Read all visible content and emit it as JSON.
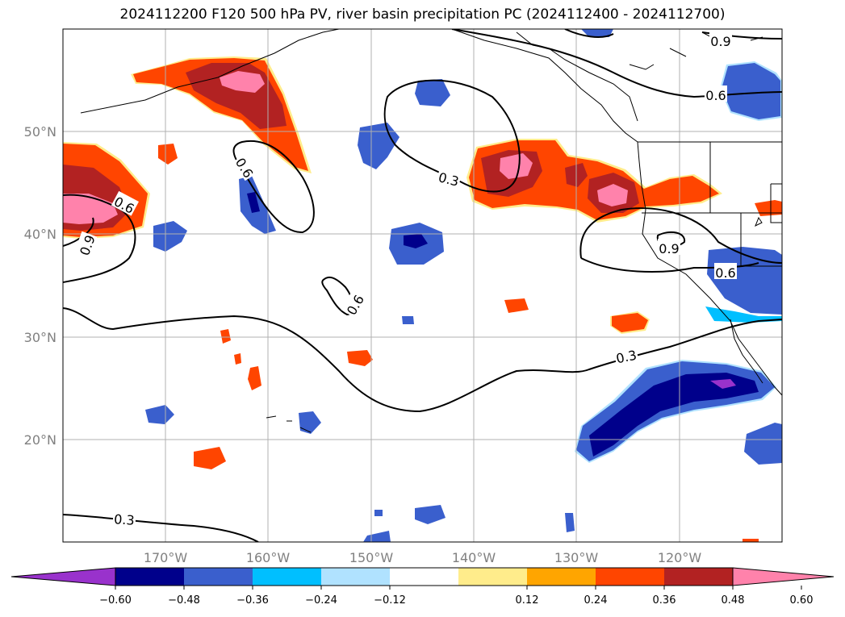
{
  "title": "2024112200 F120 500 hPa PV, river basin precipitation PC (2024112400 - 2024112700)",
  "map": {
    "lon_labels": [
      "170°W",
      "160°W",
      "150°W",
      "140°W",
      "130°W",
      "120°W"
    ],
    "lat_labels": [
      "50°N",
      "40°N",
      "30°N",
      "20°N"
    ],
    "contour_labels": [
      "0.9",
      "0.6",
      "0.6",
      "0.6",
      "0.9",
      "0.3",
      "0.6",
      "0.9",
      "0.6",
      "0.3",
      "0.3"
    ]
  },
  "colorbar": {
    "ticks": [
      "−0.60",
      "−0.48",
      "−0.36",
      "−0.24",
      "−0.12",
      "0.12",
      "0.24",
      "0.36",
      "0.48",
      "0.60"
    ],
    "colors": [
      "#9932cc",
      "#00008b",
      "#3a5fcd",
      "#00bfff",
      "#b0e2ff",
      "#ffffff",
      "#ffec8b",
      "#ffa500",
      "#ff4500",
      "#b22222",
      "#ff82ab"
    ]
  }
}
